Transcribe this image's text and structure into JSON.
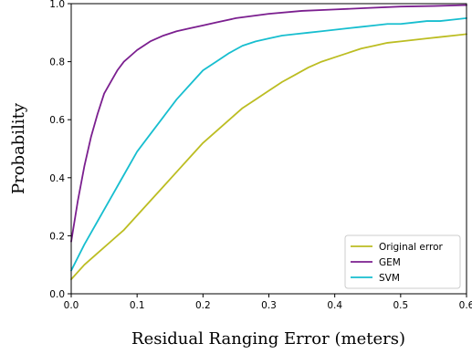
{
  "chart_data": {
    "type": "line",
    "title": "",
    "xlabel": "Residual Ranging Error (meters)",
    "ylabel": "Probability",
    "xlim": [
      0,
      0.6
    ],
    "ylim": [
      0,
      1.0
    ],
    "xticks": [
      0.0,
      0.1,
      0.2,
      0.3,
      0.4,
      0.5,
      0.6
    ],
    "xtick_labels": [
      "0.0",
      "0.1",
      "0.2",
      "0.3",
      "0.4",
      "0.5",
      "0.6"
    ],
    "yticks": [
      0.0,
      0.2,
      0.4,
      0.6,
      0.8,
      1.0
    ],
    "ytick_labels": [
      "0.0",
      "0.2",
      "0.4",
      "0.6",
      "0.8",
      "1.0"
    ],
    "grid": false,
    "legend_position": "bottom-right",
    "series": [
      {
        "name": "Original error",
        "color": "#bcbd22",
        "x": [
          0.0,
          0.02,
          0.04,
          0.06,
          0.08,
          0.1,
          0.12,
          0.14,
          0.16,
          0.18,
          0.2,
          0.22,
          0.24,
          0.26,
          0.28,
          0.3,
          0.32,
          0.34,
          0.36,
          0.38,
          0.4,
          0.42,
          0.44,
          0.46,
          0.48,
          0.5,
          0.52,
          0.54,
          0.56,
          0.58,
          0.6
        ],
        "y": [
          0.05,
          0.1,
          0.14,
          0.18,
          0.22,
          0.27,
          0.32,
          0.37,
          0.42,
          0.47,
          0.52,
          0.56,
          0.6,
          0.64,
          0.67,
          0.7,
          0.73,
          0.755,
          0.78,
          0.8,
          0.815,
          0.83,
          0.845,
          0.855,
          0.865,
          0.87,
          0.875,
          0.88,
          0.885,
          0.89,
          0.895
        ]
      },
      {
        "name": "GEM",
        "color": "#7b1f8f",
        "x": [
          0.0,
          0.01,
          0.02,
          0.03,
          0.04,
          0.05,
          0.06,
          0.07,
          0.08,
          0.09,
          0.1,
          0.12,
          0.14,
          0.16,
          0.18,
          0.2,
          0.22,
          0.25,
          0.3,
          0.35,
          0.4,
          0.45,
          0.5,
          0.55,
          0.6
        ],
        "y": [
          0.18,
          0.32,
          0.44,
          0.54,
          0.62,
          0.69,
          0.73,
          0.77,
          0.8,
          0.82,
          0.84,
          0.87,
          0.89,
          0.905,
          0.915,
          0.925,
          0.935,
          0.95,
          0.965,
          0.975,
          0.98,
          0.985,
          0.99,
          0.992,
          0.995
        ]
      },
      {
        "name": "SVM",
        "color": "#17becf",
        "x": [
          0.0,
          0.02,
          0.04,
          0.06,
          0.08,
          0.1,
          0.12,
          0.14,
          0.16,
          0.18,
          0.2,
          0.22,
          0.24,
          0.26,
          0.28,
          0.3,
          0.32,
          0.34,
          0.36,
          0.38,
          0.4,
          0.42,
          0.44,
          0.46,
          0.48,
          0.5,
          0.52,
          0.54,
          0.56,
          0.58,
          0.6
        ],
        "y": [
          0.08,
          0.17,
          0.25,
          0.33,
          0.41,
          0.49,
          0.55,
          0.61,
          0.67,
          0.72,
          0.77,
          0.8,
          0.83,
          0.855,
          0.87,
          0.88,
          0.89,
          0.895,
          0.9,
          0.905,
          0.91,
          0.915,
          0.92,
          0.925,
          0.93,
          0.93,
          0.935,
          0.94,
          0.94,
          0.945,
          0.95
        ]
      }
    ]
  }
}
